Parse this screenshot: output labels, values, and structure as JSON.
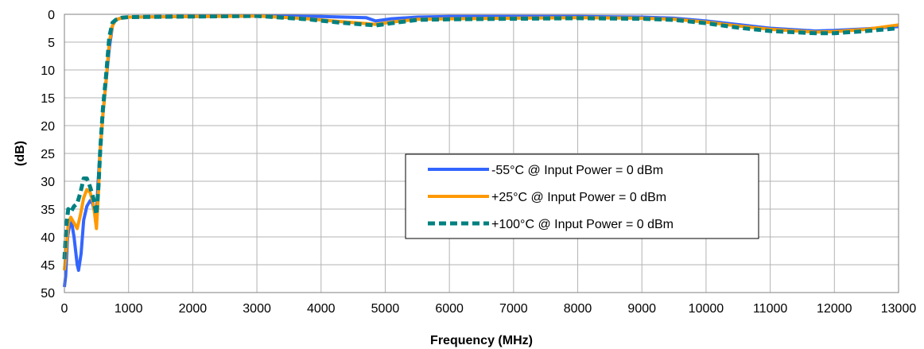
{
  "chart_data": {
    "type": "line",
    "title": "",
    "xlabel": "Frequency (MHz)",
    "ylabel": "(dB)",
    "xlim": [
      0,
      13000
    ],
    "ylim": [
      0,
      50
    ],
    "y_inverted": true,
    "xticks": [
      0,
      1000,
      2000,
      3000,
      4000,
      5000,
      6000,
      7000,
      8000,
      9000,
      10000,
      11000,
      12000,
      13000
    ],
    "yticks": [
      0,
      5,
      10,
      15,
      20,
      25,
      30,
      35,
      40,
      45,
      50
    ],
    "grid": true,
    "legend_position": "center-right",
    "series": [
      {
        "name": "-55°C @  Input Power = 0 dBm",
        "color": "#3366ff",
        "style": "solid",
        "points": [
          [
            0,
            49
          ],
          [
            20,
            47
          ],
          [
            50,
            40
          ],
          [
            100,
            36.5
          ],
          [
            150,
            40
          ],
          [
            200,
            45
          ],
          [
            220,
            46
          ],
          [
            260,
            43
          ],
          [
            300,
            37
          ],
          [
            350,
            34.5
          ],
          [
            400,
            33.5
          ],
          [
            440,
            34
          ],
          [
            480,
            36
          ],
          [
            500,
            37
          ],
          [
            520,
            31
          ],
          [
            560,
            24
          ],
          [
            600,
            18
          ],
          [
            650,
            12
          ],
          [
            700,
            6
          ],
          [
            750,
            2
          ],
          [
            800,
            1
          ],
          [
            900,
            0.6
          ],
          [
            1000,
            0.5
          ],
          [
            2000,
            0.4
          ],
          [
            3000,
            0.3
          ],
          [
            4000,
            0.4
          ],
          [
            4700,
            0.6
          ],
          [
            4850,
            1.2
          ],
          [
            5100,
            0.8
          ],
          [
            5500,
            0.5
          ],
          [
            6000,
            0.4
          ],
          [
            7000,
            0.4
          ],
          [
            8000,
            0.4
          ],
          [
            9000,
            0.5
          ],
          [
            9500,
            0.7
          ],
          [
            10000,
            1.2
          ],
          [
            11000,
            2.5
          ],
          [
            11700,
            3
          ],
          [
            12000,
            2.9
          ],
          [
            12500,
            2.6
          ],
          [
            13000,
            2.2
          ]
        ]
      },
      {
        "name": "+25°C @  Input Power = 0 dBm",
        "color": "#ff9900",
        "style": "solid",
        "points": [
          [
            0,
            46
          ],
          [
            30,
            42
          ],
          [
            60,
            37.5
          ],
          [
            100,
            36.5
          ],
          [
            150,
            37.5
          ],
          [
            200,
            38.5
          ],
          [
            250,
            36
          ],
          [
            300,
            33
          ],
          [
            350,
            31.5
          ],
          [
            400,
            32
          ],
          [
            450,
            34
          ],
          [
            500,
            38.5
          ],
          [
            530,
            32
          ],
          [
            560,
            24
          ],
          [
            600,
            18
          ],
          [
            650,
            12
          ],
          [
            700,
            5
          ],
          [
            750,
            2
          ],
          [
            800,
            1
          ],
          [
            900,
            0.6
          ],
          [
            1000,
            0.5
          ],
          [
            2000,
            0.4
          ],
          [
            3000,
            0.3
          ],
          [
            3800,
            0.8
          ],
          [
            4300,
            1.3
          ],
          [
            4850,
            1.8
          ],
          [
            5100,
            1.4
          ],
          [
            5500,
            0.9
          ],
          [
            6000,
            0.8
          ],
          [
            7000,
            0.7
          ],
          [
            8000,
            0.6
          ],
          [
            9000,
            0.7
          ],
          [
            9500,
            0.9
          ],
          [
            10000,
            1.4
          ],
          [
            10500,
            2.1
          ],
          [
            11000,
            2.7
          ],
          [
            11700,
            3.2
          ],
          [
            12000,
            3.1
          ],
          [
            12500,
            2.7
          ],
          [
            13000,
            1.9
          ]
        ]
      },
      {
        "name": "+100°C @  Input Power = 0 dBm",
        "color": "#008080",
        "style": "dashed",
        "points": [
          [
            0,
            44
          ],
          [
            30,
            38
          ],
          [
            60,
            35
          ],
          [
            100,
            35.5
          ],
          [
            150,
            34.5
          ],
          [
            200,
            34
          ],
          [
            250,
            32
          ],
          [
            300,
            29.5
          ],
          [
            350,
            29.5
          ],
          [
            400,
            31
          ],
          [
            450,
            33
          ],
          [
            500,
            36
          ],
          [
            530,
            31
          ],
          [
            560,
            24
          ],
          [
            600,
            17
          ],
          [
            650,
            11
          ],
          [
            700,
            4
          ],
          [
            750,
            1.5
          ],
          [
            800,
            1
          ],
          [
            900,
            0.6
          ],
          [
            1000,
            0.5
          ],
          [
            2000,
            0.4
          ],
          [
            3000,
            0.3
          ],
          [
            3800,
            0.9
          ],
          [
            4300,
            1.5
          ],
          [
            4850,
            2
          ],
          [
            5100,
            1.6
          ],
          [
            5500,
            1
          ],
          [
            6000,
            0.9
          ],
          [
            7000,
            0.8
          ],
          [
            8000,
            0.7
          ],
          [
            9000,
            0.8
          ],
          [
            9500,
            1
          ],
          [
            10000,
            1.6
          ],
          [
            10500,
            2.4
          ],
          [
            11000,
            3
          ],
          [
            11700,
            3.4
          ],
          [
            12000,
            3.4
          ],
          [
            12500,
            3
          ],
          [
            13000,
            2.5
          ]
        ]
      }
    ]
  }
}
